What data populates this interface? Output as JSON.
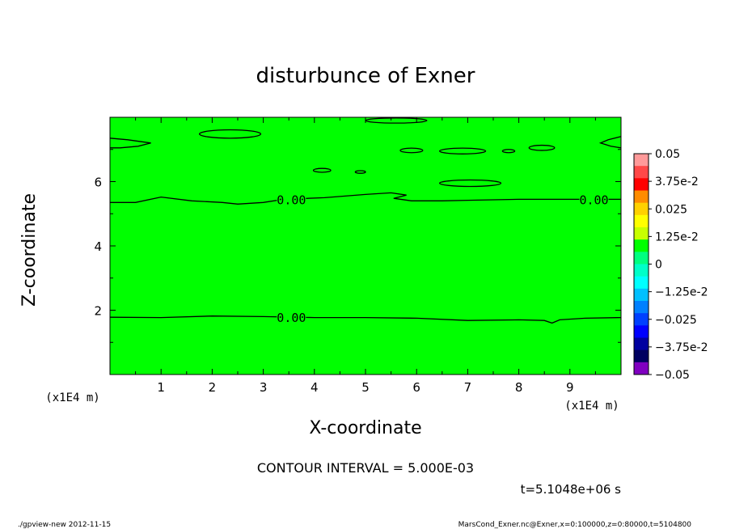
{
  "chart_data": {
    "type": "heatmap",
    "title": "disturbunce of Exner",
    "xlabel": "X-coordinate",
    "ylabel": "Z-coordinate",
    "x_unit": "(x1E4 m)",
    "y_unit": "(x1E4 m)",
    "xlim": [
      0,
      10
    ],
    "ylim": [
      0,
      8
    ],
    "x_ticks": [
      1,
      2,
      3,
      4,
      5,
      6,
      7,
      8,
      9
    ],
    "y_ticks": [
      2,
      4,
      6
    ],
    "fill_color": "#00ff00",
    "contour_label": "0.00",
    "contour_lines": [
      {
        "label": "0.00",
        "points": [
          [
            0,
            1.78
          ],
          [
            1,
            1.77
          ],
          [
            2,
            1.82
          ],
          [
            3,
            1.8
          ],
          [
            4,
            1.77
          ],
          [
            5,
            1.77
          ],
          [
            6,
            1.75
          ],
          [
            7,
            1.68
          ],
          [
            8,
            1.7
          ],
          [
            8.5,
            1.68
          ],
          [
            8.65,
            1.6
          ],
          [
            8.8,
            1.7
          ],
          [
            9.3,
            1.75
          ],
          [
            10,
            1.77
          ]
        ]
      },
      {
        "label": "0.00",
        "points": [
          [
            0,
            5.35
          ],
          [
            0.5,
            5.35
          ],
          [
            1,
            5.52
          ],
          [
            1.6,
            5.4
          ],
          [
            2.2,
            5.35
          ],
          [
            2.5,
            5.3
          ],
          [
            3,
            5.35
          ],
          [
            3.4,
            5.45
          ],
          [
            4.2,
            5.5
          ],
          [
            5,
            5.6
          ],
          [
            5.5,
            5.65
          ],
          [
            5.8,
            5.58
          ],
          [
            5.55,
            5.48
          ],
          [
            5.9,
            5.4
          ],
          [
            6.5,
            5.4
          ],
          [
            7,
            5.42
          ],
          [
            8,
            5.45
          ],
          [
            9,
            5.45
          ],
          [
            10,
            5.45
          ]
        ]
      }
    ],
    "closed_contours": [
      {
        "cx": 2.35,
        "cy": 7.48,
        "rx": 0.6,
        "ry": 0.13
      },
      {
        "cx": 7.05,
        "cy": 5.95,
        "rx": 0.6,
        "ry": 0.1
      },
      {
        "cx": 4.15,
        "cy": 6.35,
        "rx": 0.17,
        "ry": 0.06
      },
      {
        "cx": 4.9,
        "cy": 6.3,
        "rx": 0.1,
        "ry": 0.04
      },
      {
        "cx": 5.9,
        "cy": 6.97,
        "rx": 0.22,
        "ry": 0.07
      },
      {
        "cx": 6.9,
        "cy": 6.95,
        "rx": 0.45,
        "ry": 0.09
      },
      {
        "cx": 7.8,
        "cy": 6.95,
        "rx": 0.12,
        "ry": 0.05
      },
      {
        "cx": 8.45,
        "cy": 7.05,
        "rx": 0.25,
        "ry": 0.08
      },
      {
        "cx": 5.6,
        "cy": 7.9,
        "rx": 0.6,
        "ry": 0.08
      }
    ],
    "edge_contours": [
      {
        "side": "left",
        "points": [
          [
            0,
            7.35
          ],
          [
            0.35,
            7.3
          ],
          [
            0.8,
            7.2
          ],
          [
            0.55,
            7.1
          ],
          [
            0.2,
            7.05
          ],
          [
            0,
            7.05
          ]
        ]
      },
      {
        "side": "right",
        "points": [
          [
            10,
            7.4
          ],
          [
            9.75,
            7.3
          ],
          [
            9.6,
            7.2
          ],
          [
            9.8,
            7.1
          ],
          [
            10,
            7.05
          ]
        ]
      }
    ],
    "colorbar": {
      "labels": [
        "0.05",
        "3.75e-2",
        "0.025",
        "1.25e-2",
        "0",
        "−1.25e-2",
        "−0.025",
        "−3.75e-2",
        "−0.05"
      ],
      "colors": [
        "#ff9a9a",
        "#ff4848",
        "#ff0000",
        "#ff8c00",
        "#ffd000",
        "#ffff00",
        "#c8ff00",
        "#00ff00",
        "#00ff80",
        "#00ffc8",
        "#00ffff",
        "#00c0ff",
        "#0080ff",
        "#0040ff",
        "#0000ff",
        "#0000a0",
        "#000060",
        "#8000c0"
      ]
    },
    "contour_interval_text": "CONTOUR INTERVAL = 5.000E-03",
    "time_text": "t=5.1048e+06 s"
  },
  "footer": {
    "left": "./gpview-new  2012-11-15",
    "right": "MarsCond_Exner.nc@Exner,x=0:100000,z=0:80000,t=5104800"
  }
}
